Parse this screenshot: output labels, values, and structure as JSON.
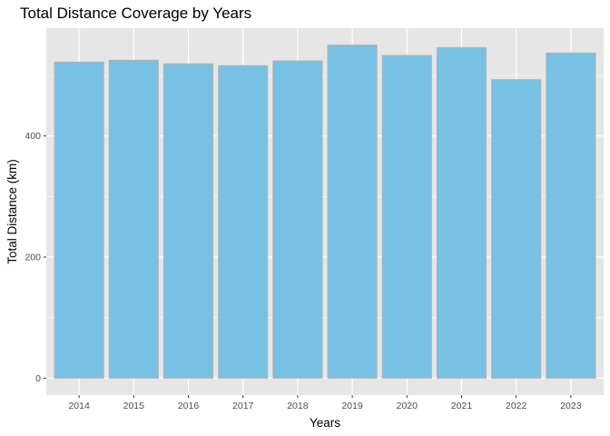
{
  "chart_data": {
    "type": "bar",
    "title": "Total Distance Coverage by Years",
    "xlabel": "Years",
    "ylabel": "Total Distance (km)",
    "categories": [
      "2014",
      "2015",
      "2016",
      "2017",
      "2018",
      "2019",
      "2020",
      "2021",
      "2022",
      "2023"
    ],
    "values": [
      522,
      525,
      519,
      516,
      524,
      550,
      533,
      546,
      493,
      537
    ],
    "ylim": [
      -28,
      578
    ],
    "y_ticks": [
      0,
      200,
      400
    ],
    "grid": true,
    "legend": "none",
    "colors": {
      "bar_fill": "#76C1E4",
      "bar_stroke": "#b3b3b3",
      "panel_bg": "#E6E6E6",
      "grid_major": "#ffffff"
    }
  }
}
